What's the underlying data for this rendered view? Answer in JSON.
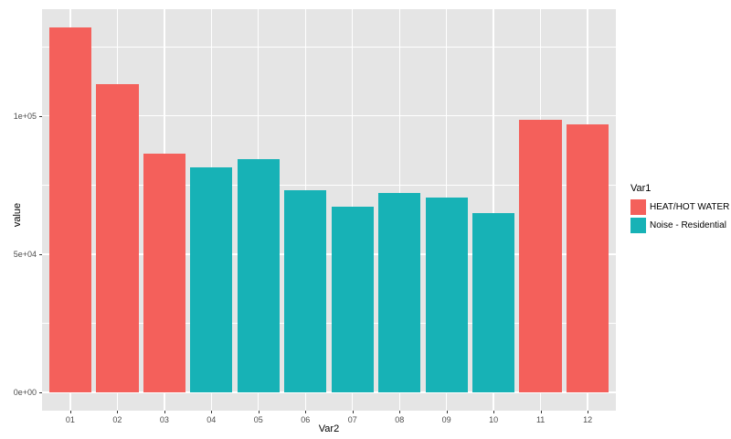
{
  "chart_data": {
    "type": "bar",
    "title": "",
    "xlabel": "Var2",
    "ylabel": "value",
    "categories": [
      "01",
      "02",
      "03",
      "04",
      "05",
      "06",
      "07",
      "08",
      "09",
      "10",
      "11",
      "12"
    ],
    "values": [
      132000,
      111500,
      86500,
      81500,
      84500,
      73000,
      67000,
      72000,
      70500,
      65000,
      98500,
      97000
    ],
    "groups": [
      "HEAT/HOT WATER",
      "HEAT/HOT WATER",
      "HEAT/HOT WATER",
      "Noise - Residential",
      "Noise - Residential",
      "Noise - Residential",
      "Noise - Residential",
      "Noise - Residential",
      "Noise - Residential",
      "Noise - Residential",
      "HEAT/HOT WATER",
      "HEAT/HOT WATER"
    ],
    "y_ticks": [
      {
        "value": 0,
        "label": "0e+00"
      },
      {
        "value": 50000,
        "label": "5e+04"
      },
      {
        "value": 100000,
        "label": "1e+05"
      }
    ],
    "y_minor": [
      25000,
      75000,
      125000
    ],
    "ylim": [
      0,
      132000
    ],
    "grid": true,
    "legend_position": "right",
    "legend": {
      "title": "Var1",
      "entries": [
        {
          "label": "HEAT/HOT WATER",
          "color": "#f4605b"
        },
        {
          "label": "Noise - Residential",
          "color": "#17b2b6"
        }
      ]
    },
    "colors": {
      "panel_background": "#e5e5e5",
      "gridline": "#ffffff",
      "tick_text": "#4d4d4d",
      "axis_title_text": "#000000"
    }
  }
}
